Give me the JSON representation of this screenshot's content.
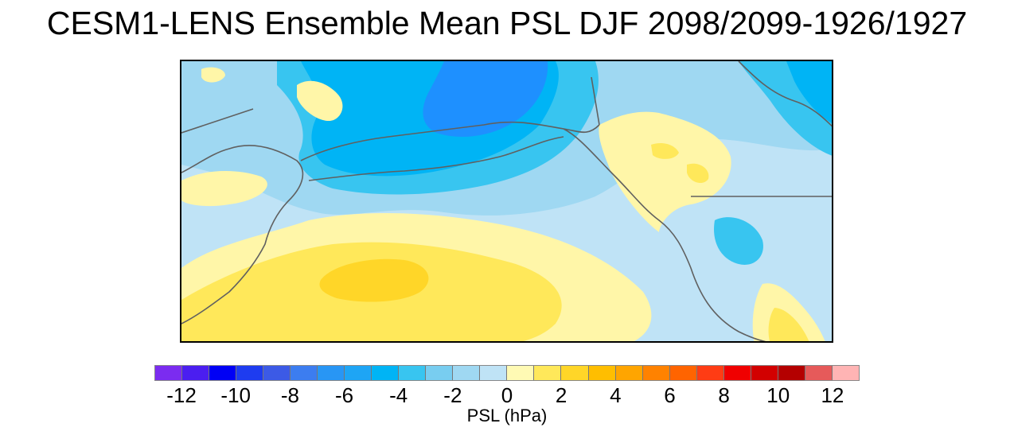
{
  "title": "CESM1-LENS Ensemble Mean PSL DJF 2098/2099-1926/1927",
  "map": {
    "ocean_base_color": "#bfe3f6",
    "fill_colors": {
      "strong_negative": "#1e90ff",
      "negative": "#00b4f5",
      "moderate_negative": "#38c5f0",
      "weak_negative": "#9fd8f2",
      "near_zero_negative": "#bfe3f6",
      "weak_positive": "#fff6a8",
      "moderate_positive": "#ffe85a",
      "strong_positive": "#ffd628"
    },
    "coastline_color": "#606060"
  },
  "colorbar": {
    "colors": [
      "#7b2cf0",
      "#4b1ef0",
      "#0000f5",
      "#1e3cf0",
      "#3c5ae6",
      "#3c7df0",
      "#2896f5",
      "#1ea5f5",
      "#00b4f5",
      "#38c5f0",
      "#78cdf0",
      "#9fd8f2",
      "#bfe3f6",
      "#fffab4",
      "#ffe85a",
      "#ffd628",
      "#ffbe00",
      "#ffa500",
      "#ff8200",
      "#ff6400",
      "#ff3c14",
      "#f00000",
      "#d20000",
      "#b40000",
      "#e65a5a",
      "#ffb4b4"
    ],
    "tick_labels": [
      "-12",
      "-10",
      "-8",
      "-6",
      "-4",
      "-2",
      "0",
      "2",
      "4",
      "6",
      "8",
      "10",
      "12"
    ],
    "units_label": "PSL (hPa)"
  }
}
